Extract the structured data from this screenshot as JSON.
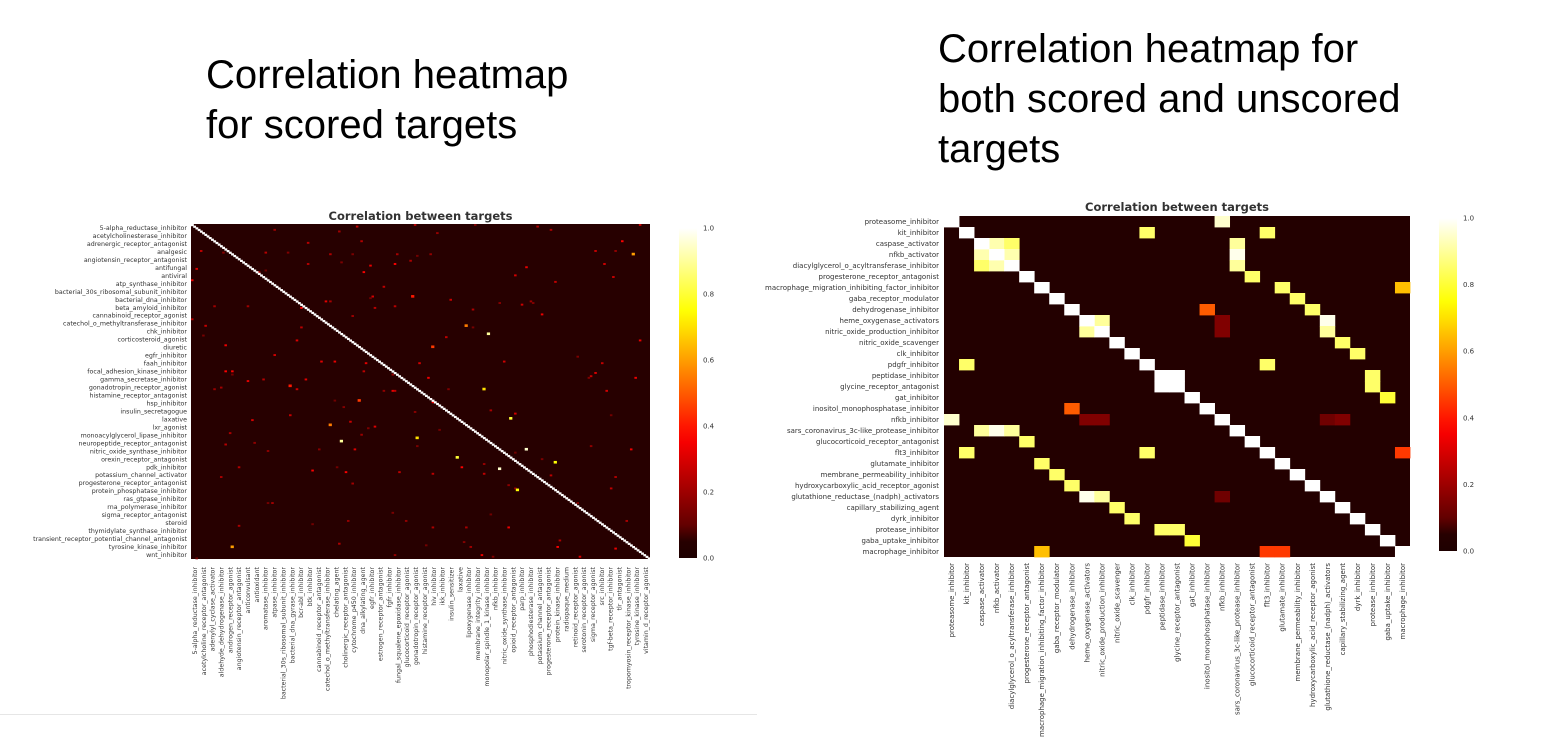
{
  "captions": {
    "left": "Correlation heatmap\nfor scored targets",
    "right": "Correlation heatmap for\nboth scored and unscored\ntargets"
  },
  "chart_data": [
    {
      "type": "heatmap",
      "title": "Correlation between targets",
      "colormap": "hot",
      "colorbar_ticks": [
        "0.0",
        "0.2",
        "0.4",
        "0.6",
        "0.8",
        "1.0"
      ],
      "vmin": 0,
      "vmax": 1,
      "y_labels": [
        "5-alpha_reductase_inhibitor",
        "acetylcholinesterase_inhibitor",
        "adrenergic_receptor_antagonist",
        "analgesic",
        "angiotensin_receptor_antagonist",
        "antifungal",
        "antiviral",
        "atp_synthase_inhibitor",
        "bacterial_30s_ribosomal_subunit_inhibitor",
        "bacterial_dna_inhibitor",
        "beta_amyloid_inhibitor",
        "cannabinoid_receptor_agonist",
        "catechol_o_methyltransferase_inhibitor",
        "chk_inhibitor",
        "corticosteroid_agonist",
        "diuretic",
        "egfr_inhibitor",
        "faah_inhibitor",
        "focal_adhesion_kinase_inhibitor",
        "gamma_secretase_inhibitor",
        "gonadotropin_receptor_agonist",
        "histamine_receptor_antagonist",
        "hsp_inhibitor",
        "insulin_secretagogue",
        "laxative",
        "lxr_agonist",
        "monoacylglycerol_lipase_inhibitor",
        "neuropeptide_receptor_antagonist",
        "nitric_oxide_synthase_inhibitor",
        "orexin_receptor_antagonist",
        "pdk_inhibitor",
        "potassium_channel_activator",
        "progesterone_receptor_antagonist",
        "protein_phosphatase_inhibitor",
        "ras_gtpase_inhibitor",
        "rna_polymerase_inhibitor",
        "sigma_receptor_antagonist",
        "steroid",
        "thymidylate_synthase_inhibitor",
        "transient_receptor_potential_channel_antagonist",
        "tyrosine_kinase_inhibitor",
        "wnt_inhibitor"
      ],
      "x_labels": [
        "5-alpha_reductase_inhibitor",
        "acetylcholine_receptor_antagonist",
        "adenylyl_cyclase_activator",
        "aldehyde_dehydrogenase_inhibitor",
        "androgen_receptor_agonist",
        "angiotensin_receptor_antagonist",
        "anticonvulsant",
        "antioxidant",
        "aromatase_inhibitor",
        "atpase_inhibitor",
        "bacterial_30s_ribosomal_subunit_inhibitor",
        "bacterial_dna_gyrase_inhibitor",
        "bcr-abl_inhibitor",
        "btk_inhibitor",
        "cannabinoid_receptor_antagonist",
        "catechol_o_methyltransferase_inhibitor",
        "chelating_agent",
        "cholinergic_receptor_antagonist",
        "cytochrome_p450_inhibitor",
        "dna_alkylating_agent",
        "egfr_inhibitor",
        "estrogen_receptor_antagonist",
        "fgfr_inhibitor",
        "fungal_squalene_epoxidase_inhibitor",
        "glucocorticoid_receptor_agonist",
        "gonadotropin_receptor_agonist",
        "histamine_receptor_agonist",
        "hiv_inhibitor",
        "ikk_inhibitor",
        "insulin_sensitizer",
        "laxative",
        "lipoxygenase_inhibitor",
        "membrane_integrity_inhibitor",
        "monopolar_spindle_1_kinase_inhibitor",
        "nfkb_inhibitor",
        "nitric_oxide_synthase_inhibitor",
        "opioid_receptor_antagonist",
        "parp_inhibitor",
        "phosphodiesterase_inhibitor",
        "potassium_channel_antagonist",
        "progesterone_receptor_antagonist",
        "protein_kinase_inhibitor",
        "radiopaque_medium",
        "retinoid_receptor_agonist",
        "serotonin_receptor_agonist",
        "sigma_receptor_agonist",
        "src_inhibitor",
        "tgf-beta_receptor_inhibitor",
        "tlr_antagonist",
        "tropomyosin_receptor_kinase_inhibitor",
        "tyrosine_kinase_inhibitor",
        "vitamin_d_receptor_agonist"
      ],
      "n_cells": 206,
      "diagonal": 1.0,
      "background": 0.05,
      "highlights": [
        {
          "i": 133,
          "j": 67,
          "v": 0.9
        },
        {
          "i": 67,
          "j": 133,
          "v": 0.9
        },
        {
          "i": 150,
          "j": 138,
          "v": 0.95
        },
        {
          "i": 138,
          "j": 150,
          "v": 0.95
        },
        {
          "i": 119,
          "j": 143,
          "v": 0.8
        },
        {
          "i": 143,
          "j": 119,
          "v": 0.8
        },
        {
          "i": 131,
          "j": 101,
          "v": 0.7
        },
        {
          "i": 101,
          "j": 131,
          "v": 0.7
        },
        {
          "i": 146,
          "j": 163,
          "v": 0.75
        },
        {
          "i": 163,
          "j": 146,
          "v": 0.75
        },
        {
          "i": 18,
          "j": 198,
          "v": 0.6
        },
        {
          "i": 198,
          "j": 18,
          "v": 0.6
        },
        {
          "i": 123,
          "j": 62,
          "v": 0.55
        },
        {
          "i": 62,
          "j": 123,
          "v": 0.55
        },
        {
          "i": 99,
          "j": 44,
          "v": 0.4
        },
        {
          "i": 44,
          "j": 99,
          "v": 0.4
        },
        {
          "i": 75,
          "j": 108,
          "v": 0.45
        },
        {
          "i": 108,
          "j": 75,
          "v": 0.45
        }
      ]
    },
    {
      "type": "heatmap",
      "title": "Correlation between targets",
      "colormap": "hot",
      "colorbar_ticks": [
        "0.0",
        "0.2",
        "0.4",
        "0.6",
        "0.8",
        "1.0"
      ],
      "vmin": 0,
      "vmax": 1,
      "labels": [
        "proteasome_inhibitor",
        "kit_inhibitor",
        "caspase_activator",
        "nfkb_activator",
        "diacylglycerol_o_acyltransferase_inhibitor",
        "progesterone_receptor_antagonist",
        "macrophage_migration_inhibiting_factor_inhibitor",
        "gaba_receptor_modulator",
        "dehydrogenase_inhibitor",
        "heme_oxygenase_activators",
        "nitric_oxide_production_inhibitor",
        "nitric_oxide_scavenger",
        "clk_inhibitor",
        "pdgfr_inhibitor",
        "peptidase_inhibitor",
        "glycine_receptor_antagonist",
        "gat_inhibitor",
        "inositol_monophosphatase_inhibitor",
        "nfkb_inhibitor",
        "sars_coronavirus_3c-like_protease_inhibitor",
        "glucocorticoid_receptor_antagonist",
        "flt3_inhibitor",
        "glutamate_inhibitor",
        "membrane_permeability_inhibitor",
        "hydroxycarboxylic_acid_receptor_agonist",
        "glutathione_reductase_(nadph)_activators",
        "capillary_stabilizing_agent",
        "dyrk_inhibitor",
        "protease_inhibitor",
        "gaba_uptake_inhibitor",
        "macrophage_inhibitor"
      ],
      "x_labels": [
        "proteasome_inhibitor",
        "kit_inhibitor",
        "caspase_activator",
        "nfkb_activator",
        "diacylglycerol_o_acyltransferase_inhibitor",
        "progesterone_receptor_antagonist",
        "macrophage_migration_inhibiting_factor_inhibitor",
        "gaba_receptor_modulator",
        "dehydrogenase_inhibitor",
        "heme_oxygenase_activators",
        "nitric_oxide_production_inhibitor",
        "nitric_oxide_scavenger",
        "clk_inhibitor",
        "pdgfr_inhibitor",
        "peptidase_inhibitor",
        "glycine_receptor_antagonist",
        "gat_inhibitor",
        "inositol_monophosphatase_inhibitor",
        "nfkb_inhibitor",
        "sars_coronavirus_3c-like_protease_inhibitor",
        "glucocorticoid_receptor_antagonist",
        "flt3_inhibitor",
        "glutamate_inhibitor",
        "membrane_permeability_inhibitor",
        "hydroxycarboxylic_acid_receptor_agonist",
        "glutathione_reductase_(nadph)_activators",
        "capillary_stabilizing_agent",
        "dyrk_inhibitor",
        "protease_inhibitor",
        "gaba_uptake_inhibitor",
        "macrophage_inhibitor"
      ],
      "x_labels_order": [
        0,
        1,
        2,
        3,
        4,
        5,
        6,
        7,
        8,
        9,
        10,
        11,
        12,
        13,
        14,
        15,
        16,
        17,
        18,
        19,
        20,
        21,
        22,
        23,
        24,
        25,
        26,
        27,
        28,
        29,
        30
      ],
      "background": 0.03,
      "cells": [
        {
          "i": 0,
          "j": 18,
          "v": 0.95
        },
        {
          "i": 18,
          "j": 0,
          "v": 0.95
        },
        {
          "i": 1,
          "j": 13,
          "v": 0.85
        },
        {
          "i": 13,
          "j": 1,
          "v": 0.85
        },
        {
          "i": 1,
          "j": 21,
          "v": 0.85
        },
        {
          "i": 21,
          "j": 1,
          "v": 0.85
        },
        {
          "i": 13,
          "j": 21,
          "v": 0.85
        },
        {
          "i": 21,
          "j": 13,
          "v": 0.85
        },
        {
          "i": 2,
          "j": 3,
          "v": 0.92
        },
        {
          "i": 3,
          "j": 2,
          "v": 0.92
        },
        {
          "i": 2,
          "j": 4,
          "v": 0.85
        },
        {
          "i": 4,
          "j": 2,
          "v": 0.85
        },
        {
          "i": 3,
          "j": 4,
          "v": 0.92
        },
        {
          "i": 4,
          "j": 3,
          "v": 0.92
        },
        {
          "i": 2,
          "j": 19,
          "v": 0.9
        },
        {
          "i": 19,
          "j": 2,
          "v": 0.9
        },
        {
          "i": 3,
          "j": 19,
          "v": 0.98
        },
        {
          "i": 19,
          "j": 3,
          "v": 0.98
        },
        {
          "i": 4,
          "j": 19,
          "v": 0.9
        },
        {
          "i": 19,
          "j": 4,
          "v": 0.9
        },
        {
          "i": 5,
          "j": 20,
          "v": 0.85
        },
        {
          "i": 20,
          "j": 5,
          "v": 0.85
        },
        {
          "i": 6,
          "j": 22,
          "v": 0.85
        },
        {
          "i": 22,
          "j": 6,
          "v": 0.85
        },
        {
          "i": 7,
          "j": 23,
          "v": 0.85
        },
        {
          "i": 23,
          "j": 7,
          "v": 0.85
        },
        {
          "i": 8,
          "j": 24,
          "v": 0.85
        },
        {
          "i": 24,
          "j": 8,
          "v": 0.85
        },
        {
          "i": 9,
          "j": 25,
          "v": 0.98
        },
        {
          "i": 25,
          "j": 9,
          "v": 0.98
        },
        {
          "i": 9,
          "j": 10,
          "v": 0.9
        },
        {
          "i": 10,
          "j": 9,
          "v": 0.9
        },
        {
          "i": 10,
          "j": 25,
          "v": 0.9
        },
        {
          "i": 25,
          "j": 10,
          "v": 0.9
        },
        {
          "i": 11,
          "j": 26,
          "v": 0.85
        },
        {
          "i": 26,
          "j": 11,
          "v": 0.85
        },
        {
          "i": 12,
          "j": 27,
          "v": 0.85
        },
        {
          "i": 27,
          "j": 12,
          "v": 0.85
        },
        {
          "i": 14,
          "j": 15,
          "v": 1.0
        },
        {
          "i": 15,
          "j": 14,
          "v": 1.0
        },
        {
          "i": 14,
          "j": 28,
          "v": 0.85
        },
        {
          "i": 28,
          "j": 14,
          "v": 0.85
        },
        {
          "i": 15,
          "j": 28,
          "v": 0.85
        },
        {
          "i": 28,
          "j": 15,
          "v": 0.85
        },
        {
          "i": 16,
          "j": 29,
          "v": 0.8
        },
        {
          "i": 29,
          "j": 16,
          "v": 0.8
        },
        {
          "i": 17,
          "j": 8,
          "v": 0.5
        },
        {
          "i": 8,
          "j": 17,
          "v": 0.5
        },
        {
          "i": 6,
          "j": 30,
          "v": 0.65
        },
        {
          "i": 30,
          "j": 6,
          "v": 0.65
        },
        {
          "i": 21,
          "j": 30,
          "v": 0.45
        },
        {
          "i": 30,
          "j": 21,
          "v": 0.45
        },
        {
          "i": 30,
          "j": 22,
          "v": 0.45
        },
        {
          "i": 9,
          "j": 18,
          "v": 0.15
        },
        {
          "i": 18,
          "j": 9,
          "v": 0.15
        },
        {
          "i": 10,
          "j": 18,
          "v": 0.15
        },
        {
          "i": 18,
          "j": 10,
          "v": 0.15
        },
        {
          "i": 25,
          "j": 18,
          "v": 0.12
        },
        {
          "i": 18,
          "j": 25,
          "v": 0.12
        },
        {
          "i": 18,
          "j": 26,
          "v": 0.15
        }
      ]
    }
  ]
}
